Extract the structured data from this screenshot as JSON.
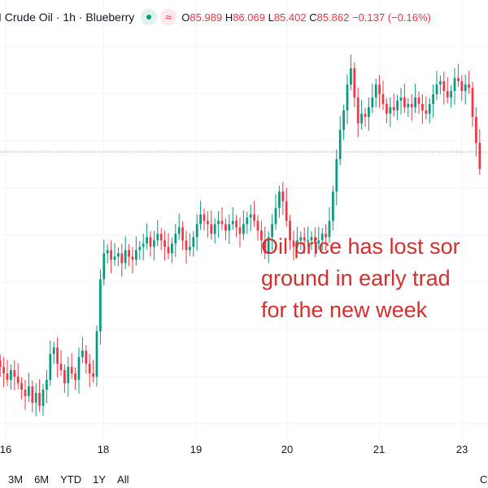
{
  "header": {
    "symbol": "I Crude Oil · 1h · Blueberry",
    "ohlc": [
      {
        "key": "O",
        "value": "85.989"
      },
      {
        "key": "H",
        "value": "86.069"
      },
      {
        "key": "L",
        "value": "85.402"
      },
      {
        "key": "C",
        "value": "85.862"
      }
    ],
    "change": "−0.137 (−0.16%)"
  },
  "annotation": "Oil price has lost sor\nground in early trad\nfor the new week",
  "x_axis_labels": [
    "16",
    "18",
    "19",
    "20",
    "21",
    "23"
  ],
  "range_buttons": [
    "3M",
    "6M",
    "YTD",
    "1Y",
    "All"
  ],
  "corner_label": "C",
  "colors": {
    "up": "#089981",
    "down": "#f23645",
    "annotation": "#d32f2f"
  },
  "chart_data": {
    "type": "candlestick",
    "x_tick_labels": [
      "16",
      "18",
      "19",
      "20",
      "21",
      "23"
    ],
    "series": [
      {
        "values_close": [
          82.55,
          82.45,
          82.35,
          82.5,
          82.4,
          82.3,
          82.2,
          82.1,
          82.25,
          82.0,
          82.15,
          81.95,
          82.2,
          82.35,
          82.75,
          82.85,
          82.6,
          82.5,
          82.3,
          82.55,
          82.45,
          82.35,
          82.7,
          82.8,
          82.6,
          82.45,
          82.4,
          83.1,
          83.9,
          84.3,
          84.35,
          84.2,
          84.25,
          84.3,
          84.15,
          84.35,
          84.25,
          84.2,
          84.35,
          84.4,
          84.45,
          84.55,
          84.4,
          84.5,
          84.6,
          84.5,
          84.4,
          84.3,
          84.45,
          84.6,
          84.7,
          84.5,
          84.35,
          84.4,
          84.55,
          84.75,
          84.9,
          84.8,
          84.75,
          84.6,
          84.75,
          84.8,
          84.75,
          84.65,
          84.75,
          84.8,
          84.7,
          84.6,
          84.75,
          84.85,
          84.9,
          84.8,
          84.65,
          84.5,
          84.3,
          84.55,
          84.75,
          85.0,
          85.25,
          85.1,
          84.8,
          84.5,
          84.4,
          84.5,
          84.55,
          84.5,
          84.5,
          84.55,
          84.45,
          84.5,
          84.6,
          84.55,
          84.8,
          85.25,
          85.75,
          86.2,
          86.5,
          86.9,
          87.15,
          86.7,
          86.3,
          86.45,
          86.4,
          86.55,
          86.7,
          86.9,
          86.75,
          86.6,
          86.45,
          86.55,
          86.5,
          86.65,
          86.7,
          86.55,
          86.6,
          86.55,
          86.7,
          86.6,
          86.5,
          86.45,
          86.6,
          86.75,
          86.9,
          86.95,
          86.8,
          86.7,
          86.8,
          87.0,
          86.95,
          86.8,
          86.9,
          86.85,
          86.4,
          86.0,
          85.6
        ],
        "hi_lo_extra": 0.15
      }
    ],
    "y_range": [
      81.5,
      87.7
    ],
    "grid": true,
    "current_price_line": 85.86
  }
}
